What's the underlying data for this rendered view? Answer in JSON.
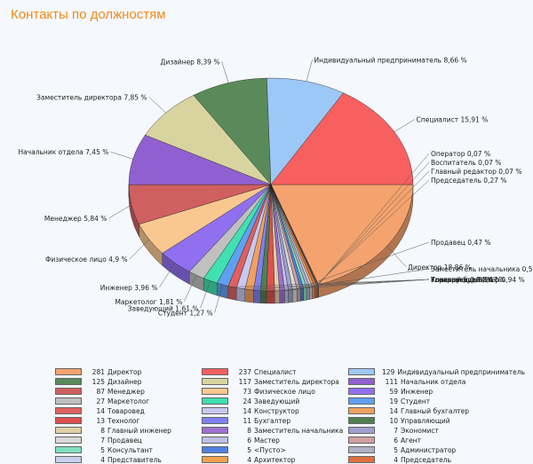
{
  "page": {
    "title": "Контакты по должностям"
  },
  "chart_data": {
    "type": "pie",
    "title": "Контакты по должностям",
    "slices": [
      {
        "name": "Директор",
        "count": 281,
        "percent": 18.86,
        "label": "Директор 18,86 %",
        "color": "#f4a36e"
      },
      {
        "name": "Оператор",
        "count": 1,
        "percent": 0.07,
        "label": "Оператор 0,07 %",
        "color": "#d06060"
      },
      {
        "name": "Воспитатель",
        "count": 1,
        "percent": 0.07,
        "label": "Воспитатель 0,07 %",
        "color": "#a0c0f0"
      },
      {
        "name": "Главный редактор",
        "count": 1,
        "percent": 0.07,
        "label": "Главный редактор 0,07 %",
        "color": "#6aa36a"
      },
      {
        "name": "Председатель",
        "count": 4,
        "percent": 0.27,
        "label": "Председатель 0,27 %",
        "color": "#e07040"
      },
      {
        "name": "Архитектор",
        "count": 4,
        "percent": 0.27,
        "label": "",
        "color": "#f0a050"
      },
      {
        "name": "Представитель",
        "count": 4,
        "percent": 0.27,
        "label": "",
        "color": "#c8d0f0"
      },
      {
        "name": "Администратор",
        "count": 5,
        "percent": 0.34,
        "label": "",
        "color": "#b0b0c8"
      },
      {
        "name": "Консультант",
        "count": 5,
        "percent": 0.34,
        "label": "",
        "color": "#80e0c0"
      },
      {
        "name": "<Пусто>",
        "count": 5,
        "percent": 0.34,
        "label": "",
        "color": "#5080e0"
      },
      {
        "name": "Агент",
        "count": 6,
        "percent": 0.4,
        "label": "",
        "color": "#d0a0a0"
      },
      {
        "name": "Продавец",
        "count": 7,
        "percent": 0.47,
        "label": "Продавец 0,47 %",
        "color": "#d8d8d8"
      },
      {
        "name": "Экономист",
        "count": 7,
        "percent": 0.47,
        "label": "",
        "color": "#a0a0d0"
      },
      {
        "name": "Мастер",
        "count": 6,
        "percent": 0.4,
        "label": "",
        "color": "#c0c0e8"
      },
      {
        "name": "Заместитель начальника",
        "count": 8,
        "percent": 0.54,
        "label": "Заместитель начальника 0,54 %",
        "color": "#a070d0"
      },
      {
        "name": "Главный инженер",
        "count": 8,
        "percent": 0.54,
        "label": "",
        "color": "#e0d0a8"
      },
      {
        "name": "Технолог",
        "count": 13,
        "percent": 0.87,
        "label": "",
        "color": "#e05050"
      },
      {
        "name": "Управляющий",
        "count": 10,
        "percent": 0.67,
        "label": "Управляющий 0,67 %",
        "color": "#508050"
      },
      {
        "name": "Бухгалтер",
        "count": 11,
        "percent": 0.74,
        "label": "",
        "color": "#8080f0"
      },
      {
        "name": "Главный бухгалтер",
        "count": 14,
        "percent": 0.94,
        "label": "Главный бухгалтер 0,94 %",
        "color": "#f0a060"
      },
      {
        "name": "Конструктор",
        "count": 14,
        "percent": 0.94,
        "label": "Конструктор 0,94 %",
        "color": "#c8c8f0"
      },
      {
        "name": "Товаровед",
        "count": 14,
        "percent": 0.94,
        "label": "Товаровед 0,94 %",
        "color": "#e06060"
      },
      {
        "name": "Студент",
        "count": 19,
        "percent": 1.27,
        "label": "Студент 1,27 %",
        "color": "#60a0f0"
      },
      {
        "name": "Заведующий",
        "count": 24,
        "percent": 1.61,
        "label": "Заведующий 1,61 %",
        "color": "#40e0b0"
      },
      {
        "name": "Маркетолог",
        "count": 27,
        "percent": 1.81,
        "label": "Маркетолог 1,81 %",
        "color": "#c0c0c0"
      },
      {
        "name": "Инженер",
        "count": 59,
        "percent": 3.96,
        "label": "Инженер 3,96 %",
        "color": "#9070f0"
      },
      {
        "name": "Физическое лицо",
        "count": 73,
        "percent": 4.9,
        "label": "Физическое лицо 4,9 %",
        "color": "#f8c890"
      },
      {
        "name": "Менеджер",
        "count": 87,
        "percent": 5.84,
        "label": "Менеджер 5,84 %",
        "color": "#d06060"
      },
      {
        "name": "Начальник отдела",
        "count": 111,
        "percent": 7.45,
        "label": "Начальник отдела 7,45 %",
        "color": "#9060d0"
      },
      {
        "name": "Заместитель директора",
        "count": 117,
        "percent": 7.85,
        "label": "Заместитель директора 7,85 %",
        "color": "#d8d4a0"
      },
      {
        "name": "Дизайнер",
        "count": 125,
        "percent": 8.39,
        "label": "Дизайнер 8,39 %",
        "color": "#5a8a5a"
      },
      {
        "name": "Индивидуальный предприниматель",
        "count": 129,
        "percent": 8.66,
        "label": "Индивидуальный предприниматель 8,66 %",
        "color": "#9cc8f8"
      },
      {
        "name": "Специалист",
        "count": 237,
        "percent": 15.91,
        "label": "Специалист 15,91 %",
        "color": "#f86060"
      }
    ],
    "legend": [
      {
        "count": "281",
        "name": "Директор",
        "color": "#f4a36e"
      },
      {
        "count": "237",
        "name": "Специалист",
        "color": "#f86060"
      },
      {
        "count": "129",
        "name": "Индивидуальный предприниматель",
        "color": "#9cc8f8"
      },
      {
        "count": "125",
        "name": "Дизайнер",
        "color": "#5a8a5a"
      },
      {
        "count": "117",
        "name": "Заместитель директора",
        "color": "#d8d4a0"
      },
      {
        "count": "111",
        "name": "Начальник отдела",
        "color": "#9060d0"
      },
      {
        "count": "87",
        "name": "Менеджер",
        "color": "#d06060"
      },
      {
        "count": "73",
        "name": "Физическое лицо",
        "color": "#f8c890"
      },
      {
        "count": "59",
        "name": "Инженер",
        "color": "#9070f0"
      },
      {
        "count": "27",
        "name": "Маркетолог",
        "color": "#c0c0c0"
      },
      {
        "count": "24",
        "name": "Заведующий",
        "color": "#40e0b0"
      },
      {
        "count": "19",
        "name": "Студент",
        "color": "#60a0f0"
      },
      {
        "count": "14",
        "name": "Товаровед",
        "color": "#e06060"
      },
      {
        "count": "14",
        "name": "Конструктор",
        "color": "#c8c8f0"
      },
      {
        "count": "14",
        "name": "Главный бухгалтер",
        "color": "#f0a060"
      },
      {
        "count": "13",
        "name": "Технолог",
        "color": "#e05050"
      },
      {
        "count": "11",
        "name": "Бухгалтер",
        "color": "#8080f0"
      },
      {
        "count": "10",
        "name": "Управляющий",
        "color": "#508050"
      },
      {
        "count": "8",
        "name": "Главный инженер",
        "color": "#e0d0a8"
      },
      {
        "count": "8",
        "name": "Заместитель начальника",
        "color": "#a070d0"
      },
      {
        "count": "7",
        "name": "Экономист",
        "color": "#a0a0d0"
      },
      {
        "count": "7",
        "name": "Продавец",
        "color": "#d8d8d8"
      },
      {
        "count": "6",
        "name": "Мастер",
        "color": "#c0c0e8"
      },
      {
        "count": "6",
        "name": "Агент",
        "color": "#d0a0a0"
      },
      {
        "count": "5",
        "name": "Консультант",
        "color": "#80e0c0"
      },
      {
        "count": "5",
        "name": "<Пусто>",
        "color": "#5080e0"
      },
      {
        "count": "5",
        "name": "Администратор",
        "color": "#b0b0c8"
      },
      {
        "count": "4",
        "name": "Представитель",
        "color": "#c8d0f0"
      },
      {
        "count": "4",
        "name": "Архитектор",
        "color": "#f0a050"
      },
      {
        "count": "4",
        "name": "Председатель",
        "color": "#e07040"
      }
    ]
  }
}
